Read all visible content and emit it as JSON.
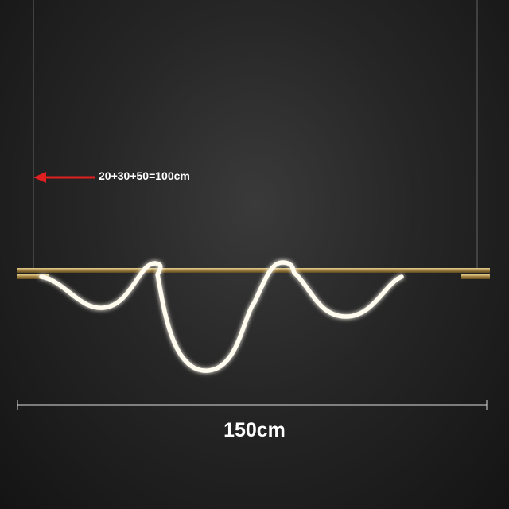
{
  "product_image": {
    "hanging_length_label": "20+30+50=100cm",
    "width_label": "150cm",
    "colors": {
      "background": "#262626",
      "bar": "#b89a5a",
      "led_tube": "#fffbef",
      "arrow": "#e02020"
    }
  }
}
